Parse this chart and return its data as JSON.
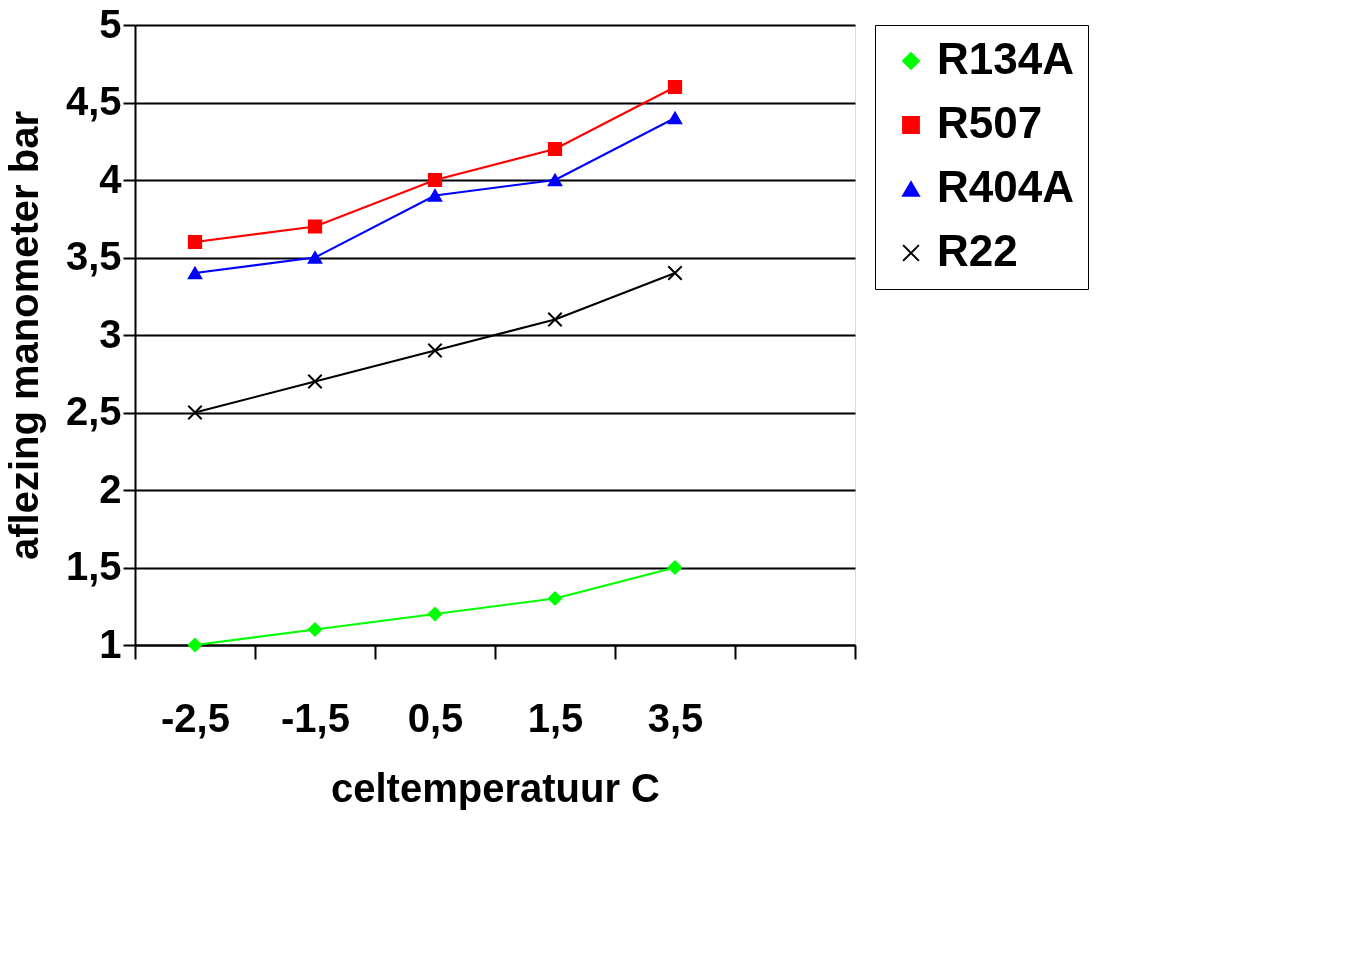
{
  "chart_data": {
    "type": "line",
    "xlabel": "celtemperatuur C",
    "ylabel": "aflezing manometer bar",
    "categories": [
      "-2,5",
      "-1,5",
      "0,5",
      "1,5",
      "3,5",
      null
    ],
    "series": [
      {
        "name": "R134A",
        "color": "#00ff00",
        "marker": "diamond",
        "values": [
          1.0,
          1.1,
          1.2,
          1.3,
          1.5,
          null
        ]
      },
      {
        "name": "R507",
        "color": "#ff0000",
        "marker": "square",
        "values": [
          3.6,
          3.7,
          4.0,
          4.2,
          4.6,
          null
        ]
      },
      {
        "name": "R404A",
        "color": "#0000ff",
        "marker": "triangle",
        "values": [
          3.4,
          3.5,
          3.9,
          4.0,
          4.4,
          null
        ]
      },
      {
        "name": "R22",
        "color": "#000000",
        "marker": "cross",
        "values": [
          2.5,
          2.7,
          2.9,
          3.1,
          3.4,
          null
        ]
      }
    ],
    "ylim": [
      1,
      5
    ],
    "yticks": [
      1,
      {
        "value": 1.5,
        "label": "1,5"
      },
      2,
      {
        "value": 2.5,
        "label": "2,5"
      },
      3,
      {
        "value": 3.5,
        "label": "3,5"
      },
      4,
      {
        "value": 4.5,
        "label": "4,5"
      },
      5
    ],
    "grid": "y",
    "legend": "right",
    "line_style": "solid"
  }
}
